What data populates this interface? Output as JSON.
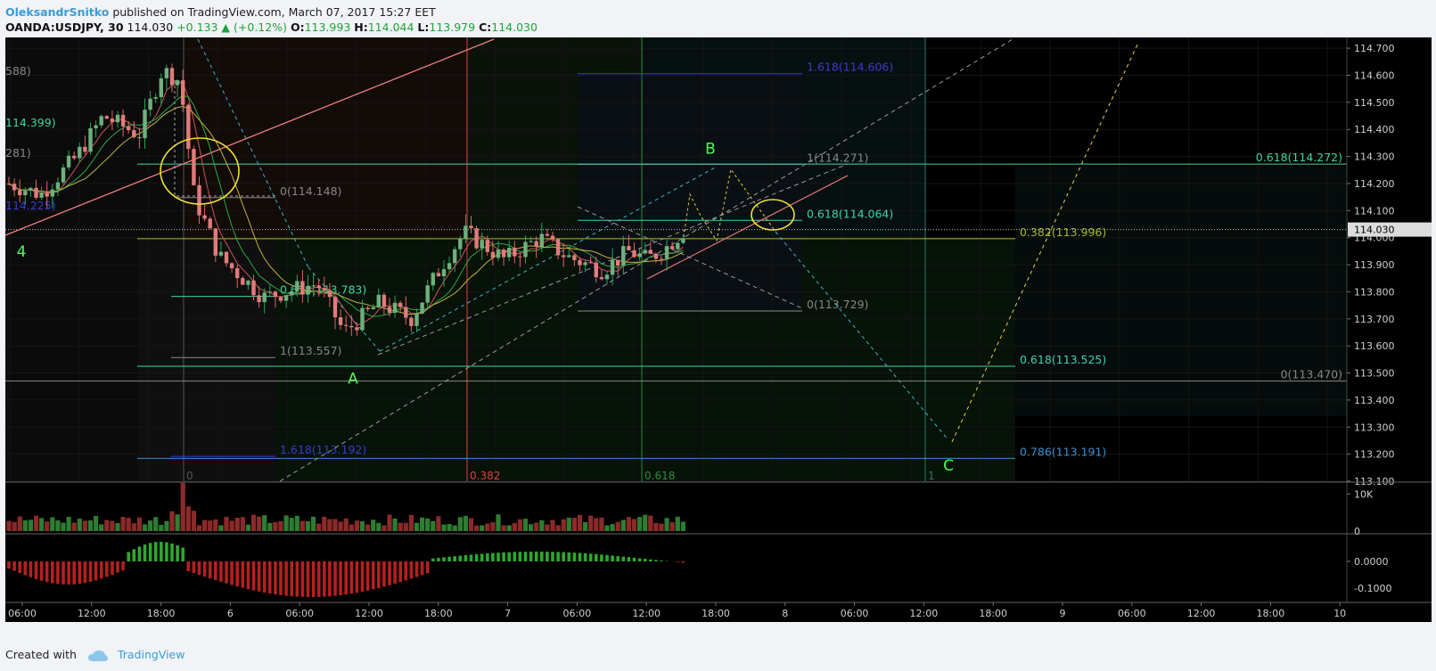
{
  "header": {
    "author": "OleksandrSnitko",
    "published_text": "published on TradingView.com, March 07, 2017 15:27 EET",
    "symbol": "OANDA:USDJPY, 30",
    "last": "114.030",
    "change": "+0.133 ▲ (+0.12%)",
    "open_label": "O:",
    "open": "113.993",
    "high_label": "H:",
    "high": "114.044",
    "low_label": "L:",
    "low": "113.979",
    "close_label": "C:",
    "close": "114.030"
  },
  "footer": {
    "created_with": "Created with",
    "brand": "TradingView",
    "brand_icon": "cloud-icon"
  },
  "colors": {
    "bg": "#000000",
    "up": "#26a65b",
    "down": "#e06666",
    "wave_label": "#4cff4c",
    "grid": "#1a1a1a"
  },
  "chart_data": {
    "type": "candlestick",
    "symbol": "OANDA:USDJPY",
    "timeframe": "30",
    "ylim": [
      113.1,
      114.74
    ],
    "price_axis_ticks": [
      "114.700",
      "114.600",
      "114.500",
      "114.400",
      "114.300",
      "114.200",
      "114.100",
      "114.000",
      "113.900",
      "113.800",
      "113.700",
      "113.600",
      "113.500",
      "113.400",
      "113.300",
      "113.200",
      "113.100"
    ],
    "last_price": "114.030",
    "time_axis_ticks": [
      "06:00",
      "12:00",
      "18:00",
      "6",
      "06:00",
      "12:00",
      "18:00",
      "7",
      "06:00",
      "12:00",
      "18:00",
      "8",
      "06:00",
      "12:00",
      "18:00",
      "9",
      "06:00",
      "12:00",
      "18:00",
      "10"
    ],
    "volume_ticks": [
      "10K",
      "0"
    ],
    "oscillator_ticks": [
      "0.0000",
      "-0.1000"
    ],
    "left_cut_labels": [
      "588)",
      "114.399)",
      "281)",
      "114.225)"
    ],
    "fib_levels": [
      {
        "label": "1.618(114.606)",
        "price": 114.606,
        "color": "#3b3bd0"
      },
      {
        "label": "1(114.271)",
        "price": 114.271,
        "color": "#888888"
      },
      {
        "label": "0.618(114.272)",
        "price": 114.272,
        "color": "#3fd4a8"
      },
      {
        "label": "0(114.148)",
        "price": 114.148,
        "color": "#888888"
      },
      {
        "label": "0.618(114.064)",
        "price": 114.064,
        "color": "#3fd4a8"
      },
      {
        "label": "0.382(113.996)",
        "price": 113.996,
        "color": "#a7b82a"
      },
      {
        "label": "0.618(113.783)",
        "price": 113.783,
        "color": "#3fd4a8"
      },
      {
        "label": "0(113.729)",
        "price": 113.729,
        "color": "#888888"
      },
      {
        "label": "1(113.557)",
        "price": 113.557,
        "color": "#888888"
      },
      {
        "label": "0.618(113.525)",
        "price": 113.525,
        "color": "#3fd4a8"
      },
      {
        "label": "0(113.470)",
        "price": 113.47,
        "color": "#888888"
      },
      {
        "label": "1.618(113.192)",
        "price": 113.192,
        "color": "#3b3bd0"
      },
      {
        "label": "0.786(113.191)",
        "price": 113.191,
        "color": "#3a8fd0"
      }
    ],
    "time_fib_labels": [
      {
        "label": "0",
        "color": "#555555"
      },
      {
        "label": "0.382",
        "color": "#e04040"
      },
      {
        "label": "0.618",
        "color": "#2e8b3e"
      },
      {
        "label": "1",
        "color": "#2e7a6a"
      }
    ],
    "wave_labels": [
      {
        "label": "4",
        "price": 113.95
      },
      {
        "label": "A",
        "price": 113.48
      },
      {
        "label": "B",
        "price": 114.33
      },
      {
        "label": "C",
        "price": 113.16
      }
    ]
  }
}
